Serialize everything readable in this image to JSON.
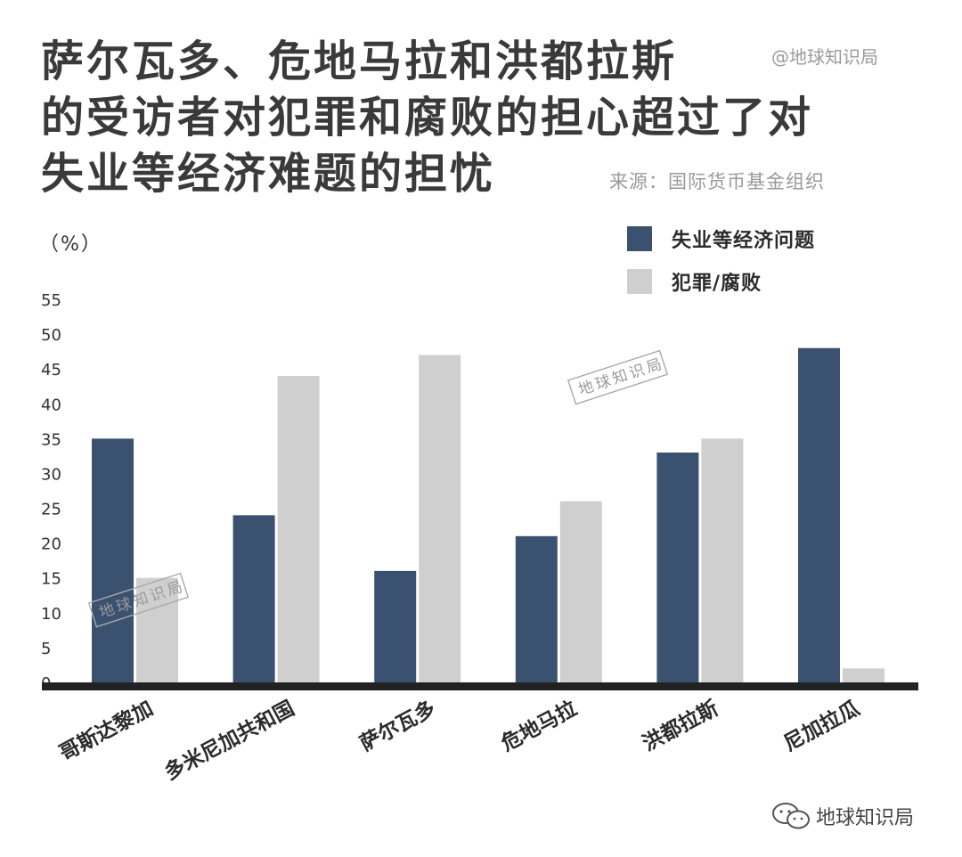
{
  "header": {
    "title_lines": [
      "萨尔瓦多、危地马拉和洪都拉斯",
      "的受访者对犯罪和腐败的担心超过了对",
      "失业等经济难题的担忧"
    ],
    "handle": "@地球知识局",
    "source": "来源：国际货币基金组织"
  },
  "unit_label": "（%）",
  "watermark": "地球知识局",
  "footer": {
    "brand": "地球知识局",
    "icon": "wechat-icon"
  },
  "colors": {
    "economy": "#3a5170",
    "crime": "#cfcfcf",
    "baseline": "#222222",
    "axis_text": "#333333"
  },
  "chart_data": {
    "type": "bar",
    "title": "萨尔瓦多、危地马拉和洪都拉斯的受访者对犯罪和腐败的担心超过了对失业等经济难题的担忧",
    "categories": [
      "哥斯达黎加",
      "多米尼加共和国",
      "萨尔瓦多",
      "危地马拉",
      "洪都拉斯",
      "尼加拉瓜"
    ],
    "series": [
      {
        "name": "失业等经济问题",
        "values": [
          35,
          24,
          16,
          21,
          33,
          48
        ]
      },
      {
        "name": "犯罪/腐败",
        "values": [
          15,
          44,
          47,
          26,
          35,
          2
        ]
      }
    ],
    "ylabel": "（%）",
    "ylim": [
      0,
      55
    ],
    "yticks": [
      0,
      5,
      10,
      15,
      20,
      25,
      30,
      35,
      40,
      45,
      50,
      55
    ],
    "grid": false,
    "legend_position": "top-right"
  }
}
